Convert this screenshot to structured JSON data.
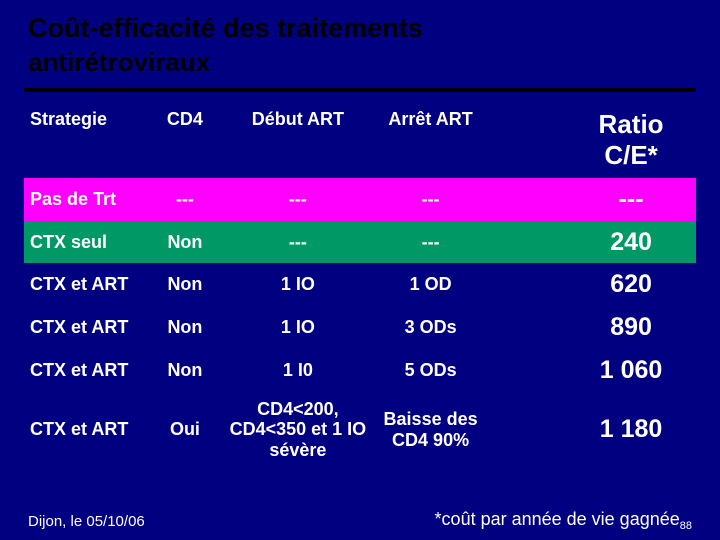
{
  "title_bold": "Coût-efficacité",
  "title_rest": " des traitements",
  "title_line2": "antirétroviraux",
  "colors": {
    "background": "#000080",
    "title_text": "#000000",
    "hr": "#000000",
    "header_text": "#ffffff",
    "body_text": "#ffffff"
  },
  "headers": {
    "strategie": "Strategie",
    "cd4": "CD4",
    "debut": "Début ART",
    "arret": "Arrêt ART",
    "ratio": "Ratio C/E*"
  },
  "rows": [
    {
      "bg": "#ff00ff",
      "strategie": "Pas de Trt",
      "cd4": "---",
      "debut": "---",
      "arret": "---",
      "ratio": "---"
    },
    {
      "bg": "#009966",
      "strategie": "CTX seul",
      "cd4": "Non",
      "debut": "---",
      "arret": "---",
      "ratio": "240"
    },
    {
      "bg": "#000080",
      "strategie": "CTX et ART",
      "cd4": "Non",
      "debut": "1 IO",
      "arret": "1 OD",
      "ratio": "620"
    },
    {
      "bg": "#000080",
      "strategie": "CTX et ART",
      "cd4": "Non",
      "debut": "1 IO",
      "arret": "3 ODs",
      "ratio": "890"
    },
    {
      "bg": "#000080",
      "strategie": "CTX et ART",
      "cd4": "Non",
      "debut": "1 I0",
      "arret": "5 ODs",
      "ratio": "1 060"
    },
    {
      "bg": "#000080",
      "strategie": "CTX et ART",
      "cd4": "Oui",
      "debut": "CD4<200, CD4<350 et 1 IO sévère",
      "arret": "Baisse des CD4 90%",
      "ratio": "1 180"
    }
  ],
  "footer": {
    "date": "Dijon, le 05/10/06",
    "note": "*coût par année de vie gagnée",
    "page": "88"
  }
}
